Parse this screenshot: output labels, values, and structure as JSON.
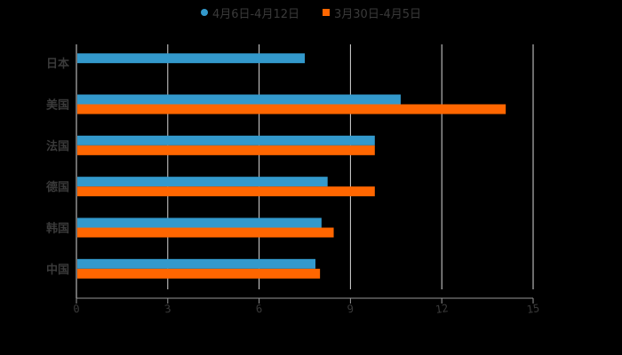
{
  "legend": {
    "series_a": "4月6日-4月12日",
    "series_b": "3月30日-4月5日"
  },
  "colors": {
    "series_a": "#3399cc",
    "series_b": "#ff6600",
    "grid": "#d9d9d9",
    "text": "#3a3a3a",
    "background": "#000000"
  },
  "chart_data": {
    "type": "bar",
    "orientation": "horizontal",
    "title": "",
    "xlabel": "",
    "ylabel": "",
    "categories": [
      "日本",
      "美国",
      "法国",
      "德国",
      "韩国",
      "中国"
    ],
    "series": [
      {
        "name": "4月6日-4月12日",
        "values": [
          7.5,
          10.65,
          9.8,
          8.25,
          8.05,
          7.85
        ]
      },
      {
        "name": "3月30日-4月5日",
        "values": [
          null,
          14.1,
          9.8,
          9.8,
          8.45,
          8.0
        ]
      }
    ],
    "xlim": [
      0,
      15
    ],
    "xticks": [
      0,
      3,
      6,
      9,
      12,
      15
    ],
    "grid": true,
    "legend_position": "top"
  }
}
